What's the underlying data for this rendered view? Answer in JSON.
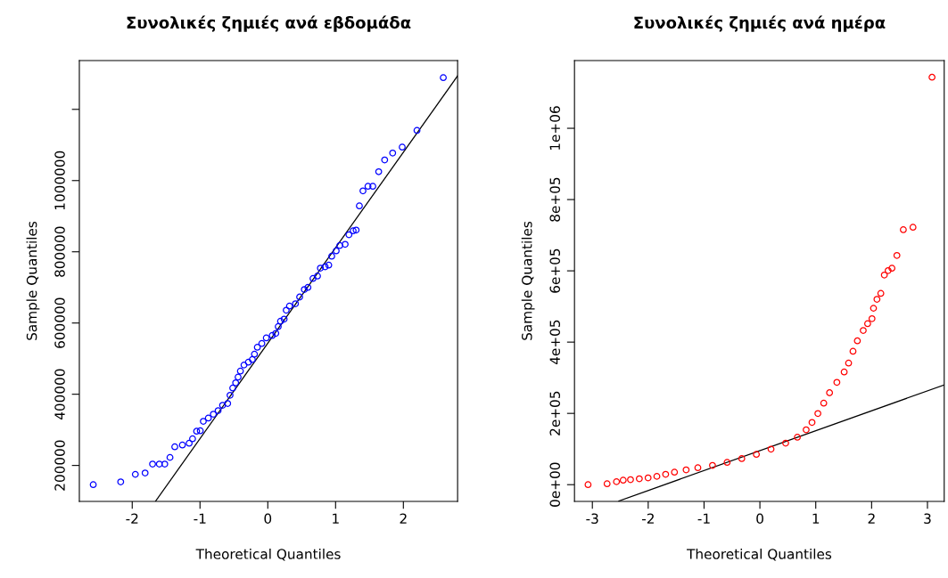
{
  "chart_data": [
    {
      "type": "scatter",
      "title": "Συνολικές ζημιές ανά εβδομάδα",
      "xlabel": "Theoretical Quantiles",
      "ylabel": "Sample Quantiles",
      "xlim": [
        -2.78,
        2.8
      ],
      "ylim": [
        99000,
        1337000
      ],
      "xticks": [
        -2,
        -1,
        0,
        1,
        2
      ],
      "yticks": [
        200000,
        400000,
        600000,
        800000,
        1000000,
        {
          "value": 1200000,
          "label": null
        }
      ],
      "grid": false,
      "legend": false,
      "series": [
        {
          "marker": "circle",
          "color": "#0000ff",
          "x": [
            -2.575,
            -2.17,
            -1.954,
            -1.81,
            -1.7,
            -1.6,
            -1.52,
            -1.443,
            -1.372,
            -1.26,
            -1.16,
            -1.11,
            -1.05,
            -0.996,
            -0.951,
            -0.877,
            -0.803,
            -0.733,
            -0.667,
            -0.592,
            -0.557,
            -0.517,
            -0.474,
            -0.438,
            -0.404,
            -0.351,
            -0.286,
            -0.228,
            -0.197,
            -0.154,
            -0.088,
            -0.022,
            0.066,
            0.118,
            0.154,
            0.188,
            0.241,
            0.272,
            0.32,
            0.408,
            0.47,
            0.539,
            0.592,
            0.667,
            0.733,
            0.776,
            0.846,
            0.899,
            0.943,
            1.009,
            1.062,
            1.141,
            1.197,
            1.259,
            1.303,
            1.351,
            1.404,
            1.478,
            1.549,
            1.636,
            1.724,
            1.842,
            1.983,
            2.201,
            2.589
          ],
          "values": [
            146000,
            154000,
            175000,
            179000,
            204000,
            204000,
            204000,
            222500,
            252500,
            257500,
            262500,
            275000,
            296000,
            297500,
            324000,
            333000,
            344000,
            354000,
            369000,
            374000,
            397000,
            417500,
            432000,
            448000,
            465000,
            482000,
            490000,
            497500,
            512500,
            532000,
            542500,
            558000,
            565000,
            571000,
            590000,
            605000,
            611000,
            636000,
            647500,
            654000,
            673000,
            694000,
            700000,
            725000,
            732000,
            754000,
            758000,
            762500,
            787500,
            802500,
            817500,
            821000,
            848000,
            859000,
            861000,
            929000,
            971000,
            984000,
            984000,
            1025000,
            1058000,
            1077500,
            1094000,
            1141000,
            1289000
          ]
        },
        {
          "type": "line",
          "color": "#000000",
          "x": [
            -1.654,
            2.8
          ],
          "values": [
            100000,
            1294000
          ]
        }
      ]
    },
    {
      "type": "scatter",
      "title": "Συνολικές ζημιές ανά ημέρα",
      "xlabel": "Theoretical Quantiles",
      "ylabel": "Sample Quantiles",
      "xlim": [
        -3.32,
        3.3
      ],
      "ylim": [
        -47000,
        1190000
      ],
      "xticks": [
        -3,
        -2,
        -1,
        0,
        1,
        2,
        3
      ],
      "yticks": [
        {
          "value": 0,
          "label": "0e+00"
        },
        {
          "value": 200000,
          "label": "2e+05"
        },
        {
          "value": 400000,
          "label": "4e+05"
        },
        {
          "value": 600000,
          "label": "6e+05"
        },
        {
          "value": 800000,
          "label": "8e+05"
        },
        {
          "value": 1000000,
          "label": "1e+06"
        }
      ],
      "grid": false,
      "legend": false,
      "series": [
        {
          "marker": "circle",
          "color": "#ff0000",
          "x": [
            -3.077,
            -2.736,
            -2.568,
            -2.448,
            -2.317,
            -2.159,
            -2.002,
            -1.845,
            -1.688,
            -1.53,
            -1.321,
            -1.111,
            -0.849,
            -0.587,
            -0.325,
            -0.063,
            0.199,
            0.461,
            0.671,
            0.828,
            0.933,
            1.038,
            1.143,
            1.247,
            1.378,
            1.509,
            1.588,
            1.667,
            1.745,
            1.85,
            1.929,
            2.007,
            2.034,
            2.096,
            2.165,
            2.228,
            2.296,
            2.364,
            2.453,
            2.568,
            2.741,
            3.082
          ],
          "values": [
            0,
            2500,
            8300,
            12500,
            14000,
            16600,
            19100,
            23300,
            29100,
            35000,
            41600,
            47400,
            54100,
            62400,
            73200,
            84900,
            99800,
            116500,
            133100,
            153900,
            174700,
            199700,
            228800,
            257900,
            287000,
            316200,
            341100,
            374400,
            403500,
            432600,
            451800,
            465900,
            495000,
            520000,
            536600,
            588200,
            600700,
            607400,
            643100,
            715500,
            722200,
            1143200
          ]
        },
        {
          "type": "line",
          "color": "#000000",
          "x": [
            -2.526,
            3.3
          ],
          "values": [
            -45800,
            280000
          ]
        }
      ]
    }
  ]
}
